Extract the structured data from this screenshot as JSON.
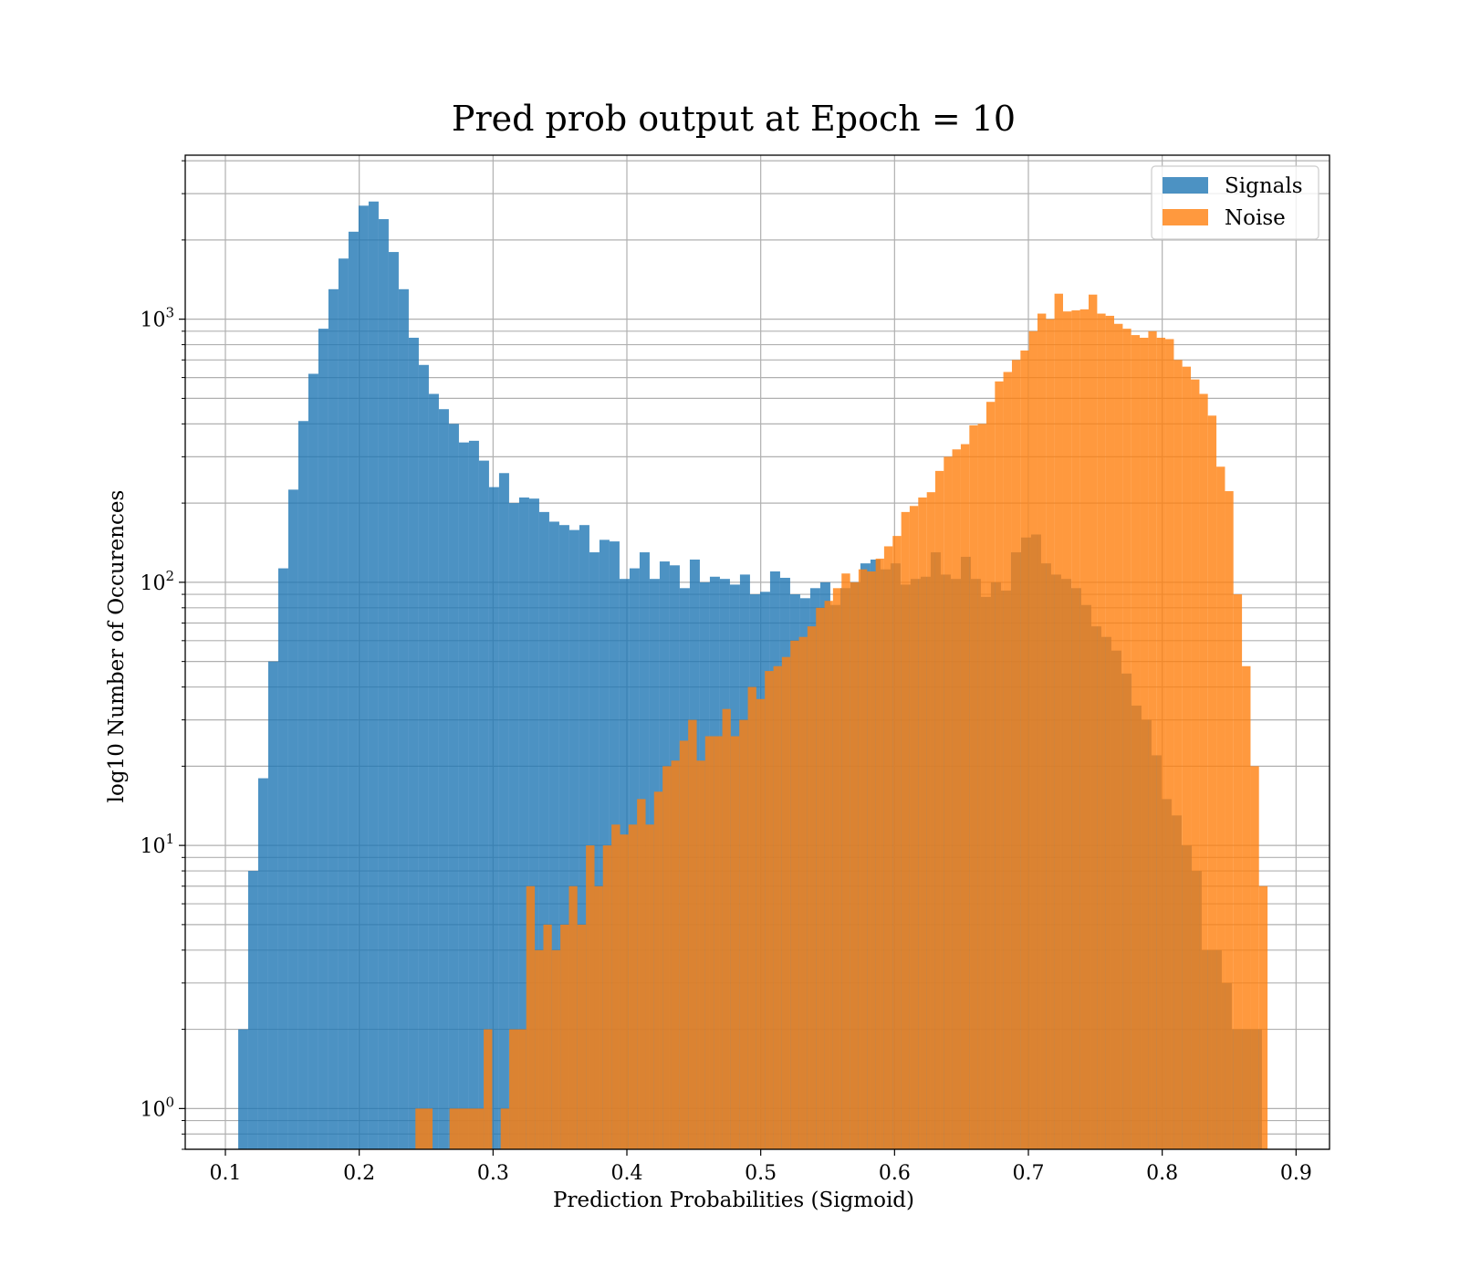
{
  "chart_data": {
    "type": "bar",
    "subtype": "histogram-overlay",
    "title": "Pred prob output at Epoch = 10",
    "xlabel": "Prediction Probabilities (Sigmoid)",
    "ylabel": "log10 Number of Occurences",
    "xlim": [
      0.07,
      0.925
    ],
    "ylim": [
      0.7,
      4200
    ],
    "yscale": "log",
    "grid": true,
    "legend": "top-right",
    "x_ticks": [
      {
        "v": 0.1,
        "label": "0.1"
      },
      {
        "v": 0.2,
        "label": "0.2"
      },
      {
        "v": 0.3,
        "label": "0.3"
      },
      {
        "v": 0.4,
        "label": "0.4"
      },
      {
        "v": 0.5,
        "label": "0.5"
      },
      {
        "v": 0.6,
        "label": "0.6"
      },
      {
        "v": 0.7,
        "label": "0.7"
      },
      {
        "v": 0.8,
        "label": "0.8"
      },
      {
        "v": 0.9,
        "label": "0.9"
      }
    ],
    "y_ticks": [
      {
        "v": 1,
        "base": "10",
        "exp": "0"
      },
      {
        "v": 10,
        "base": "10",
        "exp": "1"
      },
      {
        "v": 100,
        "base": "10",
        "exp": "2"
      },
      {
        "v": 1000,
        "base": "10",
        "exp": "3"
      }
    ],
    "series": [
      {
        "name": "Signals",
        "color": "#1f77b4",
        "opacity": 0.8,
        "bins": [
          [
            0.1096,
            0.117,
            2
          ],
          [
            0.117,
            0.1245,
            8
          ],
          [
            0.1245,
            0.132,
            18
          ],
          [
            0.132,
            0.1395,
            50
          ],
          [
            0.1395,
            0.147,
            113
          ],
          [
            0.147,
            0.1545,
            225
          ],
          [
            0.1545,
            0.162,
            410
          ],
          [
            0.162,
            0.1695,
            620
          ],
          [
            0.1695,
            0.177,
            920
          ],
          [
            0.177,
            0.1845,
            1300
          ],
          [
            0.1845,
            0.192,
            1700
          ],
          [
            0.192,
            0.1995,
            2150
          ],
          [
            0.1995,
            0.207,
            2700
          ],
          [
            0.207,
            0.2145,
            2800
          ],
          [
            0.2145,
            0.222,
            2400
          ],
          [
            0.222,
            0.2295,
            1800
          ],
          [
            0.2295,
            0.237,
            1300
          ],
          [
            0.237,
            0.2445,
            850
          ],
          [
            0.2445,
            0.252,
            670
          ],
          [
            0.252,
            0.2595,
            520
          ],
          [
            0.2595,
            0.267,
            455
          ],
          [
            0.267,
            0.2745,
            400
          ],
          [
            0.2745,
            0.282,
            340
          ],
          [
            0.282,
            0.2895,
            345
          ],
          [
            0.2895,
            0.297,
            290
          ],
          [
            0.297,
            0.3045,
            230
          ],
          [
            0.3045,
            0.312,
            260
          ],
          [
            0.312,
            0.3195,
            200
          ],
          [
            0.3195,
            0.327,
            210
          ],
          [
            0.327,
            0.3345,
            208
          ],
          [
            0.3345,
            0.342,
            185
          ],
          [
            0.342,
            0.3495,
            170
          ],
          [
            0.3495,
            0.357,
            165
          ],
          [
            0.357,
            0.3645,
            158
          ],
          [
            0.3645,
            0.372,
            165
          ],
          [
            0.372,
            0.3795,
            130
          ],
          [
            0.3795,
            0.387,
            145
          ],
          [
            0.387,
            0.3945,
            143
          ],
          [
            0.3945,
            0.402,
            103
          ],
          [
            0.402,
            0.4095,
            113
          ],
          [
            0.4095,
            0.417,
            130
          ],
          [
            0.417,
            0.4245,
            103
          ],
          [
            0.4245,
            0.432,
            120
          ],
          [
            0.432,
            0.4395,
            116
          ],
          [
            0.4395,
            0.447,
            95
          ],
          [
            0.447,
            0.4545,
            122
          ],
          [
            0.4545,
            0.462,
            100
          ],
          [
            0.462,
            0.4695,
            105
          ],
          [
            0.4695,
            0.477,
            103
          ],
          [
            0.477,
            0.4845,
            98
          ],
          [
            0.4845,
            0.492,
            107
          ],
          [
            0.492,
            0.4995,
            90
          ],
          [
            0.4995,
            0.507,
            92
          ],
          [
            0.507,
            0.5145,
            110
          ],
          [
            0.5145,
            0.522,
            104
          ],
          [
            0.522,
            0.5295,
            90
          ],
          [
            0.5295,
            0.537,
            87
          ],
          [
            0.537,
            0.5445,
            95
          ],
          [
            0.5445,
            0.552,
            100
          ],
          [
            0.552,
            0.5595,
            82
          ],
          [
            0.5595,
            0.567,
            95
          ],
          [
            0.567,
            0.5745,
            100
          ],
          [
            0.5745,
            0.582,
            118
          ],
          [
            0.582,
            0.5895,
            122
          ],
          [
            0.5895,
            0.597,
            112
          ],
          [
            0.597,
            0.6045,
            118
          ],
          [
            0.6045,
            0.612,
            98
          ],
          [
            0.612,
            0.6195,
            103
          ],
          [
            0.6195,
            0.627,
            105
          ],
          [
            0.627,
            0.6345,
            130
          ],
          [
            0.6345,
            0.642,
            107
          ],
          [
            0.642,
            0.6495,
            103
          ],
          [
            0.6495,
            0.657,
            125
          ],
          [
            0.657,
            0.6645,
            103
          ],
          [
            0.6645,
            0.672,
            88
          ],
          [
            0.672,
            0.6795,
            100
          ],
          [
            0.6795,
            0.687,
            93
          ],
          [
            0.687,
            0.6945,
            130
          ],
          [
            0.6945,
            0.702,
            148
          ],
          [
            0.702,
            0.7095,
            152
          ],
          [
            0.7095,
            0.717,
            118
          ],
          [
            0.717,
            0.7245,
            107
          ],
          [
            0.7245,
            0.732,
            103
          ],
          [
            0.732,
            0.7395,
            95
          ],
          [
            0.7395,
            0.747,
            82
          ],
          [
            0.747,
            0.7545,
            68
          ],
          [
            0.7545,
            0.762,
            62
          ],
          [
            0.762,
            0.7695,
            55
          ],
          [
            0.7695,
            0.777,
            45
          ],
          [
            0.777,
            0.7845,
            34
          ],
          [
            0.7845,
            0.792,
            30
          ],
          [
            0.792,
            0.7995,
            22
          ],
          [
            0.7995,
            0.807,
            15
          ],
          [
            0.807,
            0.8145,
            13
          ],
          [
            0.8145,
            0.822,
            10
          ],
          [
            0.822,
            0.8295,
            8
          ],
          [
            0.8295,
            0.837,
            4
          ],
          [
            0.837,
            0.8445,
            4
          ],
          [
            0.8445,
            0.852,
            3
          ],
          [
            0.852,
            0.8595,
            2
          ],
          [
            0.8595,
            0.867,
            2
          ],
          [
            0.867,
            0.8745,
            2
          ]
        ]
      },
      {
        "name": "Noise",
        "color": "#ff7f0e",
        "opacity": 0.8,
        "bins": [
          [
            0.242,
            0.2548,
            1
          ],
          [
            0.2675,
            0.293,
            1
          ],
          [
            0.293,
            0.2994,
            2
          ],
          [
            0.3057,
            0.3121,
            1
          ],
          [
            0.3121,
            0.3248,
            2
          ],
          [
            0.3248,
            0.3312,
            7
          ],
          [
            0.3312,
            0.3376,
            4
          ],
          [
            0.3376,
            0.3439,
            5
          ],
          [
            0.3439,
            0.3503,
            4
          ],
          [
            0.3503,
            0.3567,
            5
          ],
          [
            0.3567,
            0.363,
            7
          ],
          [
            0.363,
            0.3694,
            5
          ],
          [
            0.3694,
            0.3758,
            10
          ],
          [
            0.3758,
            0.3821,
            7
          ],
          [
            0.3821,
            0.3885,
            10
          ],
          [
            0.3885,
            0.3949,
            12
          ],
          [
            0.3949,
            0.4012,
            11
          ],
          [
            0.4012,
            0.4076,
            12
          ],
          [
            0.4076,
            0.414,
            15
          ],
          [
            0.414,
            0.4203,
            12
          ],
          [
            0.4203,
            0.4267,
            16
          ],
          [
            0.4267,
            0.4331,
            20
          ],
          [
            0.4331,
            0.4394,
            21
          ],
          [
            0.4394,
            0.4458,
            25
          ],
          [
            0.4458,
            0.4522,
            30
          ],
          [
            0.4522,
            0.4585,
            21
          ],
          [
            0.4585,
            0.4649,
            26
          ],
          [
            0.4649,
            0.4713,
            26
          ],
          [
            0.4713,
            0.4776,
            33
          ],
          [
            0.4776,
            0.484,
            26
          ],
          [
            0.484,
            0.4904,
            30
          ],
          [
            0.4904,
            0.4967,
            40
          ],
          [
            0.4967,
            0.5031,
            36
          ],
          [
            0.5031,
            0.5095,
            46
          ],
          [
            0.5095,
            0.5158,
            48
          ],
          [
            0.5158,
            0.5222,
            52
          ],
          [
            0.5222,
            0.5286,
            60
          ],
          [
            0.5286,
            0.5349,
            62
          ],
          [
            0.5349,
            0.5413,
            68
          ],
          [
            0.5413,
            0.5477,
            80
          ],
          [
            0.5477,
            0.554,
            85
          ],
          [
            0.554,
            0.5604,
            95
          ],
          [
            0.5604,
            0.5668,
            108
          ],
          [
            0.5668,
            0.5731,
            100
          ],
          [
            0.5731,
            0.5795,
            112
          ],
          [
            0.5795,
            0.5859,
            110
          ],
          [
            0.5859,
            0.5922,
            123
          ],
          [
            0.5922,
            0.5986,
            137
          ],
          [
            0.5986,
            0.605,
            150
          ],
          [
            0.605,
            0.6113,
            185
          ],
          [
            0.6113,
            0.6177,
            195
          ],
          [
            0.6177,
            0.6241,
            210
          ],
          [
            0.6241,
            0.6304,
            220
          ],
          [
            0.6304,
            0.6368,
            265
          ],
          [
            0.6368,
            0.6431,
            300
          ],
          [
            0.6431,
            0.6495,
            320
          ],
          [
            0.6495,
            0.6559,
            335
          ],
          [
            0.6559,
            0.6622,
            395
          ],
          [
            0.6622,
            0.6686,
            400
          ],
          [
            0.6686,
            0.675,
            485
          ],
          [
            0.675,
            0.6813,
            580
          ],
          [
            0.6813,
            0.6877,
            630
          ],
          [
            0.6877,
            0.6941,
            700
          ],
          [
            0.6941,
            0.7004,
            760
          ],
          [
            0.7004,
            0.7068,
            900
          ],
          [
            0.7068,
            0.7132,
            1050
          ],
          [
            0.7132,
            0.7195,
            1000
          ],
          [
            0.7195,
            0.7259,
            1250
          ],
          [
            0.7259,
            0.7323,
            1070
          ],
          [
            0.7323,
            0.7386,
            1080
          ],
          [
            0.7386,
            0.745,
            1090
          ],
          [
            0.745,
            0.7514,
            1240
          ],
          [
            0.7514,
            0.7577,
            1050
          ],
          [
            0.7577,
            0.7641,
            1030
          ],
          [
            0.7641,
            0.7705,
            960
          ],
          [
            0.7705,
            0.7768,
            920
          ],
          [
            0.7768,
            0.7832,
            870
          ],
          [
            0.7832,
            0.7896,
            850
          ],
          [
            0.7896,
            0.7959,
            900
          ],
          [
            0.7959,
            0.8023,
            850
          ],
          [
            0.8023,
            0.8087,
            840
          ],
          [
            0.8087,
            0.815,
            700
          ],
          [
            0.815,
            0.8214,
            660
          ],
          [
            0.8214,
            0.8278,
            590
          ],
          [
            0.8278,
            0.8341,
            520
          ],
          [
            0.8341,
            0.8405,
            430
          ],
          [
            0.8405,
            0.8469,
            275
          ],
          [
            0.8469,
            0.8532,
            222
          ],
          [
            0.8532,
            0.8596,
            90
          ],
          [
            0.8596,
            0.866,
            48
          ],
          [
            0.866,
            0.8723,
            20
          ],
          [
            0.8723,
            0.8787,
            7
          ]
        ]
      }
    ]
  }
}
